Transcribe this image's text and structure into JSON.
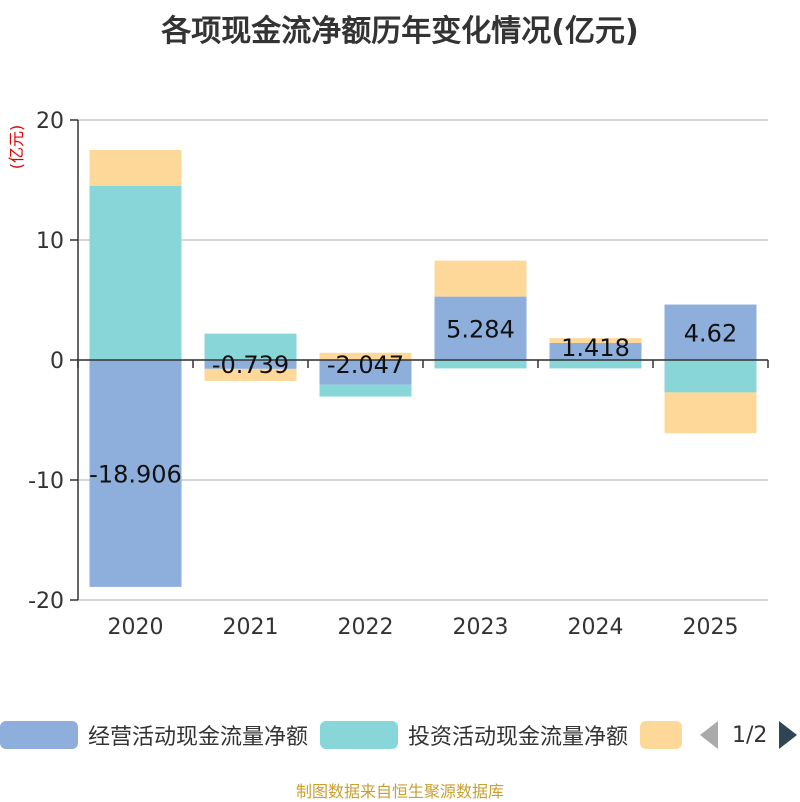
{
  "title": "各项现金流净额历年变化情况(亿元)",
  "footer": "制图数据来自恒生聚源数据库",
  "legend_page": "1/2",
  "chart_data": {
    "type": "bar",
    "stacked": true,
    "title": "各项现金流净额历年变化情况(亿元)",
    "ylabel": "(亿元)",
    "ylim": [
      -20,
      20
    ],
    "yticks": [
      20,
      10,
      0,
      -10,
      -20
    ],
    "grid": true,
    "legend_position": "bottom",
    "categories": [
      "2020",
      "2021",
      "2022",
      "2023",
      "2024",
      "2025"
    ],
    "series": [
      {
        "name": "经营活动现金流量净额",
        "color": "#8eaedb",
        "values": [
          -18.906,
          -0.739,
          -2.047,
          5.284,
          1.418,
          4.62
        ],
        "labels": [
          "-18.906",
          "-0.739",
          "-2.047",
          "5.284",
          "1.418",
          "4.62"
        ]
      },
      {
        "name": "投资活动现金流量净额",
        "color": "#88d6d8",
        "values": [
          14.5,
          2.2,
          -1.0,
          -0.7,
          -0.7,
          -2.7
        ],
        "labels": []
      },
      {
        "name": "",
        "color": "#fdd899",
        "values": [
          3.0,
          -1.0,
          0.6,
          3.0,
          0.4,
          -3.4
        ],
        "labels": []
      }
    ]
  }
}
